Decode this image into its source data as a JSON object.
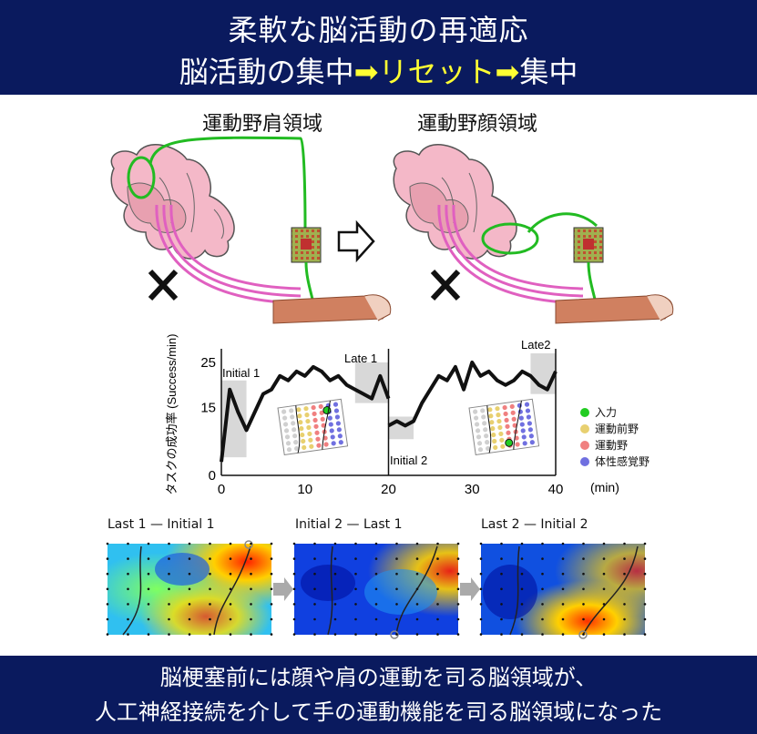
{
  "header": {
    "line1": "柔軟な脳活動の再適応",
    "line2_a": "脳活動の集中",
    "line2_arrow1": "➡",
    "line2_b": "リセット",
    "line2_arrow2": "➡",
    "line2_c": "集中"
  },
  "panels": {
    "left_region": "運動野肩領域",
    "right_region": "運動野顔領域"
  },
  "chart_data": {
    "type": "line",
    "ylabel": "タスクの成功率 (Success/min)",
    "xlabel": "(min)",
    "xticks": [
      0,
      10,
      20,
      30,
      40
    ],
    "yticks": [
      0,
      15,
      25
    ],
    "xlim": [
      0,
      40
    ],
    "ylim": [
      0,
      27
    ],
    "annotations": [
      "Initial 1",
      "Late 1",
      "Initial 2",
      "Late2"
    ],
    "series": [
      {
        "x": [
          0,
          1,
          2,
          3,
          4,
          5,
          6,
          7,
          8,
          9,
          10,
          11,
          12,
          13,
          14,
          15,
          16,
          17,
          18,
          19,
          20
        ],
        "y": [
          3,
          19,
          14,
          10,
          14,
          18,
          19,
          22,
          21,
          23,
          22,
          24,
          23,
          21,
          22,
          20,
          19,
          18,
          17,
          22,
          17
        ]
      },
      {
        "x": [
          20,
          21,
          22,
          23,
          24,
          25,
          26,
          27,
          28,
          29,
          30,
          31,
          32,
          33,
          34,
          35,
          36,
          37,
          38,
          39,
          40
        ],
        "y": [
          11,
          12,
          11,
          12,
          16,
          19,
          22,
          21,
          24,
          19,
          25,
          22,
          23,
          21,
          20,
          21,
          23,
          22,
          20,
          19,
          23
        ]
      }
    ]
  },
  "legend": [
    {
      "label": "入力",
      "color": "#22cc22"
    },
    {
      "label": "運動前野",
      "color": "#e8d070"
    },
    {
      "label": "運動野",
      "color": "#f08080"
    },
    {
      "label": "体性感覚野",
      "color": "#7070e0"
    }
  ],
  "maps": [
    {
      "title": "Last 1 — Initial 1"
    },
    {
      "title": "Initial 2 — Last 1"
    },
    {
      "title": "Last 2 — Initial 2"
    }
  ],
  "footer": {
    "line1": "脳梗塞前には顔や肩の運動を司る脳領域が、",
    "line2": "人工神経接続を介して手の運動機能を司る脳領域になった"
  }
}
